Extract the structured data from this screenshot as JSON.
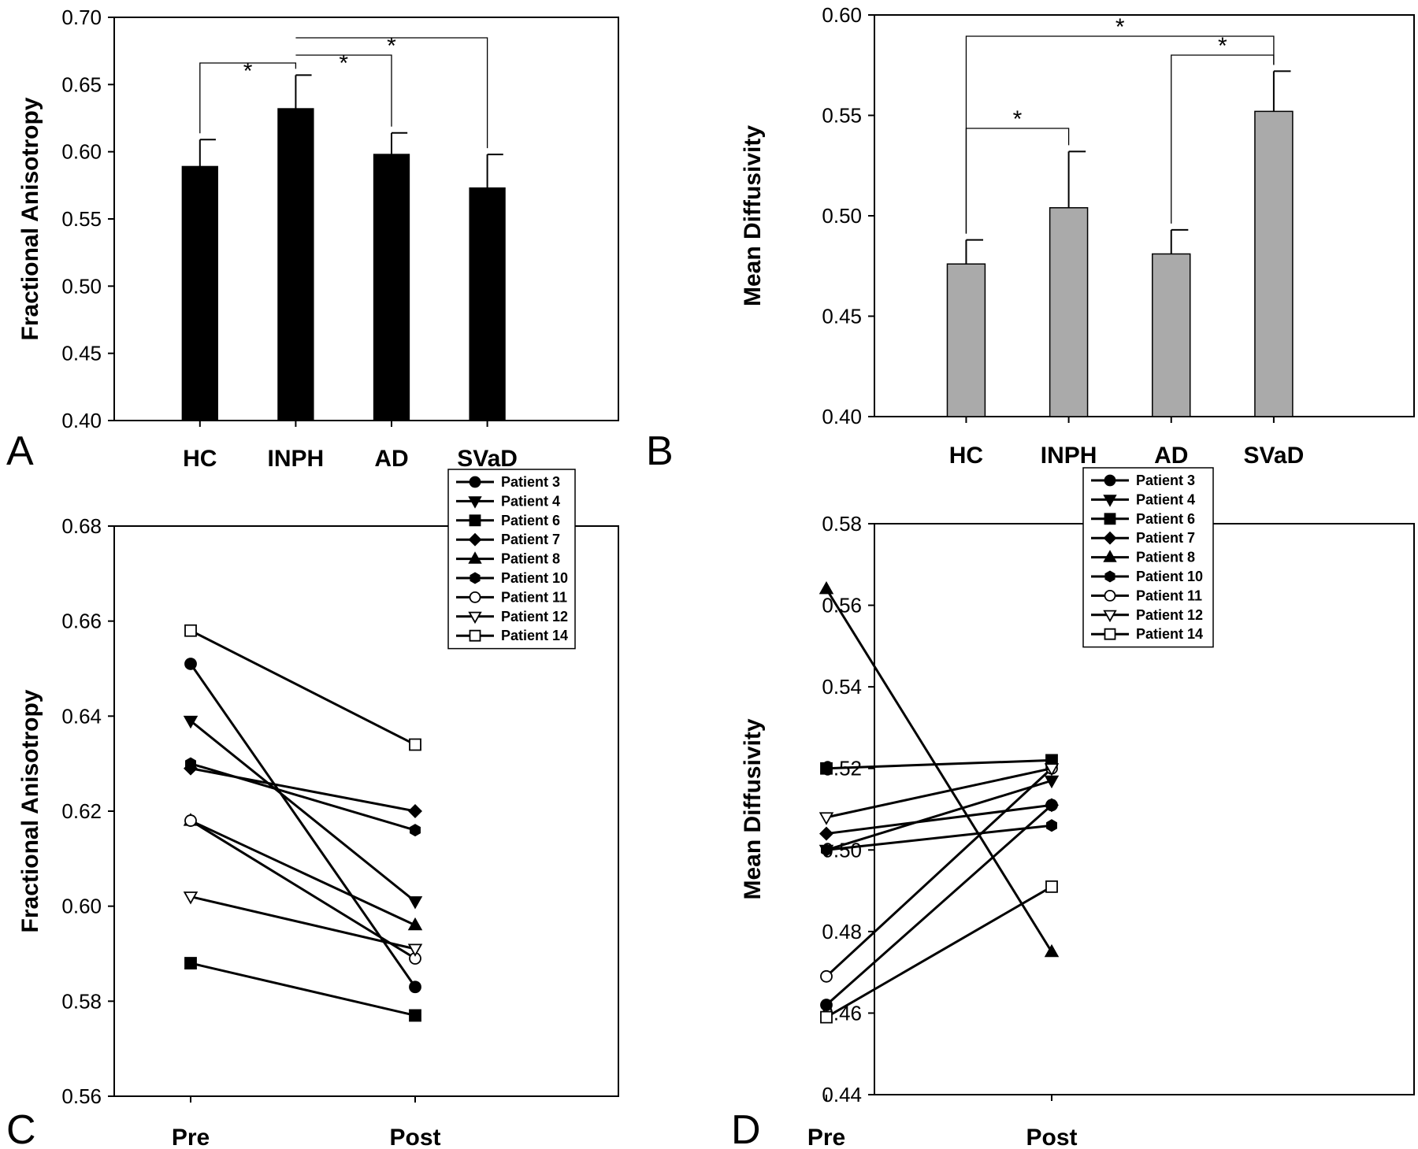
{
  "chart_data": [
    {
      "panel": "A",
      "type": "bar",
      "ylabel": "Fractional Anisotropy",
      "ylim": [
        0.4,
        0.7
      ],
      "yticks": [
        "0.40",
        "0.45",
        "0.50",
        "0.55",
        "0.60",
        "0.65",
        "0.70"
      ],
      "categories": [
        "HC",
        "INPH",
        "AD",
        "SVaD"
      ],
      "values": [
        0.589,
        0.632,
        0.598,
        0.573
      ],
      "errors": [
        0.02,
        0.025,
        0.016,
        0.025
      ],
      "bar_color": "#000000",
      "significance": [
        {
          "from": 0,
          "to": 1,
          "label": "*"
        },
        {
          "from": 1,
          "to": 2,
          "label": "*"
        },
        {
          "from": 1,
          "to": 3,
          "label": "*"
        }
      ]
    },
    {
      "panel": "B",
      "type": "bar",
      "ylabel": "Mean Diffusivity",
      "ylim": [
        0.4,
        0.6
      ],
      "yticks": [
        "0.40",
        "0.45",
        "0.50",
        "0.55",
        "0.60"
      ],
      "categories": [
        "HC",
        "INPH",
        "AD",
        "SVaD"
      ],
      "values": [
        0.476,
        0.504,
        0.481,
        0.552
      ],
      "errors": [
        0.012,
        0.028,
        0.012,
        0.02
      ],
      "bar_color": "#aaaaaa",
      "significance": [
        {
          "from": 0,
          "to": 1,
          "label": "*"
        },
        {
          "from": 0,
          "to": 3,
          "label": "*"
        },
        {
          "from": 2,
          "to": 3,
          "label": "*"
        }
      ]
    },
    {
      "panel": "C",
      "type": "line",
      "ylabel": "Fractional Anisotropy",
      "ylim": [
        0.56,
        0.68
      ],
      "yticks": [
        "0.56",
        "0.58",
        "0.60",
        "0.62",
        "0.64",
        "0.66",
        "0.68"
      ],
      "categories": [
        "Pre",
        "Post"
      ],
      "legend": "top-right",
      "series": [
        {
          "name": "Patient 3",
          "marker": "circle",
          "filled": true,
          "values": [
            0.651,
            0.583
          ]
        },
        {
          "name": "Patient 4",
          "marker": "triangle-down",
          "filled": true,
          "values": [
            0.639,
            0.601
          ]
        },
        {
          "name": "Patient 6",
          "marker": "square",
          "filled": true,
          "values": [
            0.588,
            0.577
          ]
        },
        {
          "name": "Patient 7",
          "marker": "diamond",
          "filled": true,
          "values": [
            0.629,
            0.62
          ]
        },
        {
          "name": "Patient 8",
          "marker": "triangle-up",
          "filled": true,
          "values": [
            0.618,
            0.596
          ]
        },
        {
          "name": "Patient 10",
          "marker": "hexagon",
          "filled": true,
          "values": [
            0.63,
            0.616
          ]
        },
        {
          "name": "Patient 11",
          "marker": "circle",
          "filled": false,
          "values": [
            0.618,
            0.589
          ]
        },
        {
          "name": "Patient 12",
          "marker": "triangle-down",
          "filled": false,
          "values": [
            0.602,
            0.591
          ]
        },
        {
          "name": "Patient 14",
          "marker": "square",
          "filled": false,
          "values": [
            0.658,
            0.634
          ]
        }
      ]
    },
    {
      "panel": "D",
      "type": "line",
      "ylabel": "Mean Diffusivity",
      "ylim": [
        0.44,
        0.58
      ],
      "yticks": [
        "0.44",
        "0.46",
        "0.48",
        "0.50",
        "0.52",
        "0.54",
        "0.56",
        "0.58"
      ],
      "categories": [
        "Pre",
        "Post"
      ],
      "legend": "top-right",
      "series": [
        {
          "name": "Patient 3",
          "marker": "circle",
          "filled": true,
          "values": [
            0.462,
            0.511
          ]
        },
        {
          "name": "Patient 4",
          "marker": "triangle-down",
          "filled": true,
          "values": [
            0.5,
            0.517
          ]
        },
        {
          "name": "Patient 6",
          "marker": "square",
          "filled": true,
          "values": [
            0.52,
            0.522
          ]
        },
        {
          "name": "Patient 7",
          "marker": "diamond",
          "filled": true,
          "values": [
            0.504,
            0.511
          ]
        },
        {
          "name": "Patient 8",
          "marker": "triangle-up",
          "filled": true,
          "values": [
            0.564,
            0.475
          ]
        },
        {
          "name": "Patient 10",
          "marker": "hexagon",
          "filled": true,
          "values": [
            0.5,
            0.506
          ]
        },
        {
          "name": "Patient 11",
          "marker": "circle",
          "filled": false,
          "values": [
            0.469,
            0.52
          ]
        },
        {
          "name": "Patient 12",
          "marker": "triangle-down",
          "filled": false,
          "values": [
            0.508,
            0.52
          ]
        },
        {
          "name": "Patient 14",
          "marker": "square",
          "filled": false,
          "values": [
            0.459,
            0.491
          ]
        }
      ]
    }
  ]
}
